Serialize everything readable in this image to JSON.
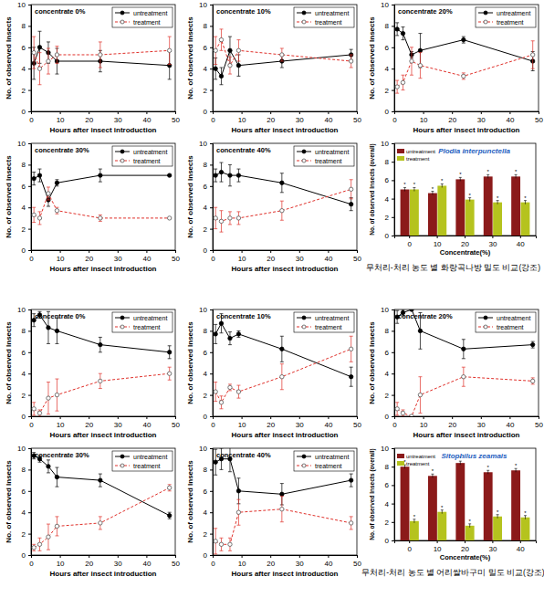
{
  "chart_data": [
    {
      "type": "line",
      "title": "concentrate 0%",
      "x_label": "Hours after insect introduction",
      "y_label": "No. of observed Insects",
      "x": [
        1,
        3,
        6,
        9,
        24,
        48
      ],
      "xlim": [
        0,
        50
      ],
      "xticks": [
        0,
        10,
        20,
        30,
        40,
        50
      ],
      "ylim": [
        0,
        10
      ],
      "yticks": [
        0,
        2,
        4,
        6,
        8,
        10
      ],
      "legend": "upper right",
      "series": [
        {
          "name": "untreatment",
          "color": "#000000",
          "marker": "filled-circle",
          "line_style": "solid",
          "values": [
            4.5,
            6,
            5.5,
            4.7,
            4.7,
            4.3
          ],
          "errors": [
            1.5,
            1.5,
            1.0,
            1.2,
            1.0,
            1.3
          ]
        },
        {
          "name": "treatment",
          "color": "#e0302a",
          "marker": "open-circle",
          "line_style": "dashed",
          "values": [
            5.5,
            4,
            4.7,
            5.3,
            5.3,
            5.7
          ],
          "errors": [
            1.5,
            1.5,
            1.2,
            0.8,
            1.2,
            1.3
          ]
        }
      ]
    },
    {
      "type": "line",
      "title": "concentrate 10%",
      "x_label": "Hours after insect introduction",
      "y_label": "No. of observed Insects",
      "x": [
        1,
        3,
        6,
        9,
        24,
        48
      ],
      "xlim": [
        0,
        50
      ],
      "xticks": [
        0,
        10,
        20,
        30,
        40,
        50
      ],
      "ylim": [
        0,
        10
      ],
      "yticks": [
        0,
        2,
        4,
        6,
        8,
        10
      ],
      "legend": "upper right",
      "series": [
        {
          "name": "untreatment",
          "color": "#000000",
          "marker": "filled-circle",
          "line_style": "solid",
          "values": [
            4,
            3.3,
            5.7,
            4.3,
            4.7,
            5.3
          ],
          "errors": [
            1.0,
            0.8,
            1.3,
            1.0,
            0.6,
            0.5
          ]
        },
        {
          "name": "treatment",
          "color": "#e0302a",
          "marker": "open-circle",
          "line_style": "dashed",
          "values": [
            5.7,
            6.7,
            4.3,
            5.7,
            5.3,
            4.7
          ],
          "errors": [
            1.3,
            1.0,
            0.8,
            1.0,
            0.6,
            0.6
          ]
        }
      ]
    },
    {
      "type": "line",
      "title": "concentrate 20%",
      "x_label": "Hours after insect introduction",
      "y_label": "No. of observed Insects",
      "x": [
        1,
        3,
        6,
        9,
        24,
        48
      ],
      "xlim": [
        0,
        50
      ],
      "xticks": [
        0,
        10,
        20,
        30,
        40,
        50
      ],
      "ylim": [
        0,
        10
      ],
      "yticks": [
        0,
        2,
        4,
        6,
        8,
        10
      ],
      "legend": "upper right",
      "series": [
        {
          "name": "untreatment",
          "color": "#000000",
          "marker": "filled-circle",
          "line_style": "solid",
          "values": [
            7.7,
            7.3,
            5.3,
            5.7,
            6.7,
            4.7
          ],
          "errors": [
            0.6,
            0.6,
            0.3,
            1.6,
            0.3,
            0.9
          ]
        },
        {
          "name": "treatment",
          "color": "#e0302a",
          "marker": "open-circle",
          "line_style": "dashed",
          "values": [
            2.3,
            2.7,
            4.7,
            4.3,
            3.3,
            5.3
          ],
          "errors": [
            0.6,
            0.7,
            1.3,
            1.2,
            0.3,
            1.3
          ]
        }
      ]
    },
    {
      "type": "line",
      "title": "concentrate 30%",
      "x_label": "Hours after insect introduction",
      "y_label": "No. of observed Insects",
      "x": [
        1,
        3,
        6,
        9,
        24,
        48
      ],
      "xlim": [
        0,
        50
      ],
      "xticks": [
        0,
        10,
        20,
        30,
        40,
        50
      ],
      "ylim": [
        0,
        10
      ],
      "yticks": [
        0,
        2,
        4,
        6,
        8,
        10
      ],
      "legend": "upper right",
      "series": [
        {
          "name": "untreatment",
          "color": "#000000",
          "marker": "filled-circle",
          "line_style": "solid",
          "values": [
            6.7,
            7,
            4.7,
            6.3,
            7,
            7
          ],
          "errors": [
            0.6,
            0.6,
            0.6,
            0.3,
            0.6,
            0
          ]
        },
        {
          "name": "treatment",
          "color": "#e0302a",
          "marker": "open-circle",
          "line_style": "dashed",
          "values": [
            3.3,
            3,
            5.3,
            3.7,
            3,
            3
          ],
          "errors": [
            0.7,
            0.6,
            0.6,
            0.3,
            0.3,
            0
          ]
        }
      ]
    },
    {
      "type": "line",
      "title": "concentrate 40%",
      "x_label": "Hours after insect introduction",
      "y_label": "No. of observed Insects",
      "x": [
        1,
        3,
        6,
        9,
        24,
        48
      ],
      "xlim": [
        0,
        50
      ],
      "xticks": [
        0,
        10,
        20,
        30,
        40,
        50
      ],
      "ylim": [
        0,
        10
      ],
      "yticks": [
        0,
        2,
        4,
        6,
        8,
        10
      ],
      "legend": "upper right",
      "series": [
        {
          "name": "untreatment",
          "color": "#000000",
          "marker": "filled-circle",
          "line_style": "solid",
          "values": [
            7,
            7.3,
            7,
            7,
            6.3,
            4.3
          ],
          "errors": [
            0.6,
            0.9,
            1.0,
            0.6,
            0.9,
            0.6
          ]
        },
        {
          "name": "treatment",
          "color": "#e0302a",
          "marker": "open-circle",
          "line_style": "dashed",
          "values": [
            3,
            2.7,
            3,
            3,
            3.7,
            5.7
          ],
          "errors": [
            1.0,
            1.0,
            0.6,
            0.6,
            0.9,
            0.9
          ]
        }
      ]
    },
    {
      "type": "bar",
      "title": "Plodia interpunctella",
      "caption": "무처리-처리 농도 별 화랑곡나방 밀도 비교(강조)",
      "x_label": "Concentrate(%)",
      "y_label": "No. of observed Insects (overall)",
      "categories": [
        "0",
        "10",
        "20",
        "30",
        "40"
      ],
      "ylim": [
        0,
        10
      ],
      "yticks": [
        0,
        2,
        4,
        6,
        8,
        10
      ],
      "legend": "upper left",
      "series": [
        {
          "name": "untreatment",
          "color": "#8b1a1a",
          "values": [
            5.0,
            4.6,
            6.1,
            6.4,
            6.4
          ],
          "errors": [
            0.2,
            0.2,
            0.2,
            0.2,
            0.2
          ],
          "annotations": [
            "*",
            "*",
            "*",
            "*",
            "*"
          ]
        },
        {
          "name": "treatment",
          "color": "#b5c31e",
          "values": [
            5.0,
            5.4,
            3.9,
            3.6,
            3.6
          ],
          "errors": [
            0.2,
            0.2,
            0.2,
            0.2,
            0.2
          ],
          "annotations": [
            "*",
            "*",
            "*",
            "*",
            "*"
          ]
        }
      ]
    },
    {
      "type": "line",
      "title": "concentrate 0%",
      "x_label": "Hours after insect introduction",
      "y_label": "No. of observed Insects",
      "x": [
        1,
        3,
        6,
        9,
        24,
        48
      ],
      "xlim": [
        0,
        50
      ],
      "xticks": [
        0,
        10,
        20,
        30,
        40,
        50
      ],
      "ylim": [
        0,
        10
      ],
      "yticks": [
        0,
        2,
        4,
        6,
        8,
        10
      ],
      "legend": "upper right",
      "series": [
        {
          "name": "untreatment",
          "color": "#000000",
          "marker": "filled-circle",
          "line_style": "solid",
          "values": [
            9,
            9.5,
            8.3,
            8,
            6.7,
            6
          ],
          "errors": [
            0.6,
            0.3,
            1.5,
            1.2,
            0.7,
            0.6
          ]
        },
        {
          "name": "treatment",
          "color": "#e0302a",
          "marker": "open-circle",
          "line_style": "dashed",
          "values": [
            0.7,
            0.3,
            1.7,
            2,
            3.3,
            4
          ],
          "errors": [
            0.6,
            0.3,
            1.5,
            1.5,
            0.7,
            0.6
          ]
        }
      ]
    },
    {
      "type": "line",
      "title": "concentrate 10%",
      "x_label": "Hours after insect introduction",
      "y_label": "No. of observed Insects",
      "x": [
        1,
        3,
        6,
        9,
        24,
        48
      ],
      "xlim": [
        0,
        50
      ],
      "xticks": [
        0,
        10,
        20,
        30,
        40,
        50
      ],
      "ylim": [
        0,
        10
      ],
      "yticks": [
        0,
        2,
        4,
        6,
        8,
        10
      ],
      "legend": "upper right",
      "series": [
        {
          "name": "untreatment",
          "color": "#000000",
          "marker": "filled-circle",
          "line_style": "solid",
          "values": [
            7.7,
            8.7,
            7.3,
            7.7,
            6.3,
            3.7
          ],
          "errors": [
            0.9,
            0.9,
            0.6,
            0.3,
            1.2,
            0.9
          ]
        },
        {
          "name": "treatment",
          "color": "#e0302a",
          "marker": "open-circle",
          "line_style": "dashed",
          "values": [
            2.3,
            1.3,
            2.7,
            2.3,
            3.7,
            6.3
          ],
          "errors": [
            0.9,
            0.6,
            0.3,
            0.6,
            1.2,
            1.2
          ]
        }
      ]
    },
    {
      "type": "line",
      "title": "concentrate 20%",
      "x_label": "Hours after insect introduction",
      "y_label": "No. of observed Insects",
      "x": [
        1,
        3,
        6,
        9,
        24,
        48
      ],
      "xlim": [
        0,
        50
      ],
      "xticks": [
        0,
        10,
        20,
        30,
        40,
        50
      ],
      "ylim": [
        0,
        10
      ],
      "yticks": [
        0,
        2,
        4,
        6,
        8,
        10
      ],
      "legend": "upper right",
      "series": [
        {
          "name": "untreatment",
          "color": "#000000",
          "marker": "filled-circle",
          "line_style": "solid",
          "values": [
            9.3,
            9.7,
            10,
            8,
            6.3,
            6.7
          ],
          "errors": [
            0.6,
            0.3,
            0,
            1.7,
            0.9,
            0.3
          ]
        },
        {
          "name": "treatment",
          "color": "#e0302a",
          "marker": "open-circle",
          "line_style": "dashed",
          "values": [
            0.7,
            0.3,
            0,
            2,
            3.7,
            3.3
          ],
          "errors": [
            0.6,
            0.3,
            0,
            1.7,
            0.9,
            0.3
          ]
        }
      ]
    },
    {
      "type": "line",
      "title": "concentrate 30%",
      "x_label": "Hours after insect introduction",
      "y_label": "No. of observed Insects",
      "x": [
        1,
        3,
        6,
        9,
        24,
        48
      ],
      "xlim": [
        0,
        50
      ],
      "xticks": [
        0,
        10,
        20,
        30,
        40,
        50
      ],
      "ylim": [
        0,
        10
      ],
      "yticks": [
        0,
        2,
        4,
        6,
        8,
        10
      ],
      "legend": "upper right",
      "series": [
        {
          "name": "untreatment",
          "color": "#000000",
          "marker": "filled-circle",
          "line_style": "solid",
          "values": [
            9.3,
            9,
            8.3,
            7.3,
            7,
            3.7
          ],
          "errors": [
            0.3,
            0.3,
            0.6,
            0.9,
            0.6,
            0.3
          ]
        },
        {
          "name": "treatment",
          "color": "#e0302a",
          "marker": "open-circle",
          "line_style": "dashed",
          "values": [
            0.7,
            1,
            1.7,
            2.7,
            3,
            6.3
          ],
          "errors": [
            0.3,
            0.6,
            1.2,
            0.9,
            0.6,
            0.3
          ]
        }
      ]
    },
    {
      "type": "line",
      "title": "concentrate 40%",
      "x_label": "Hours after insect introduction",
      "y_label": "No. of observed Insects",
      "x": [
        1,
        3,
        6,
        9,
        24,
        48
      ],
      "xlim": [
        0,
        50
      ],
      "xticks": [
        0,
        10,
        20,
        30,
        40,
        50
      ],
      "ylim": [
        0,
        10
      ],
      "yticks": [
        0,
        2,
        4,
        6,
        8,
        10
      ],
      "legend": "upper right",
      "series": [
        {
          "name": "untreatment",
          "color": "#000000",
          "marker": "filled-circle",
          "line_style": "solid",
          "values": [
            8.7,
            9,
            9,
            6,
            5.7,
            7
          ],
          "errors": [
            1.2,
            1.0,
            1.2,
            1.2,
            1.0,
            0.6
          ]
        },
        {
          "name": "treatment",
          "color": "#e0302a",
          "marker": "open-circle",
          "line_style": "dashed",
          "values": [
            1.3,
            1,
            1,
            4,
            4.3,
            3
          ],
          "errors": [
            1.2,
            0.6,
            0.6,
            1.2,
            1.2,
            0.6
          ]
        }
      ]
    },
    {
      "type": "bar",
      "title": "Sitophilus zeamais",
      "caption": "무처리-처리 농도 별 어리쌀바구미 밀도 비교(강조)",
      "x_label": "Concentrate(%)",
      "y_label": "No. of observed Insects (overall)",
      "categories": [
        "0",
        "10",
        "20",
        "30",
        "40"
      ],
      "ylim": [
        0,
        10
      ],
      "yticks": [
        0,
        2,
        4,
        6,
        8,
        10
      ],
      "legend": "upper left",
      "series": [
        {
          "name": "untreatment",
          "color": "#8b1a1a",
          "values": [
            8.0,
            7.0,
            8.4,
            7.4,
            7.6
          ],
          "errors": [
            0.2,
            0.2,
            0.2,
            0.2,
            0.2
          ],
          "annotations": [
            "*",
            "*",
            "*",
            "*",
            "*"
          ]
        },
        {
          "name": "treatment",
          "color": "#b5c31e",
          "values": [
            2.1,
            3.1,
            1.6,
            2.6,
            2.5
          ],
          "errors": [
            0.2,
            0.2,
            0.2,
            0.2,
            0.2
          ],
          "annotations": [
            "*",
            "*",
            "*",
            "*",
            "*"
          ]
        }
      ]
    }
  ]
}
